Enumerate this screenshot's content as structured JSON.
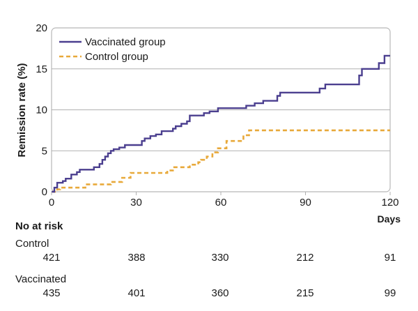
{
  "chart_data": {
    "type": "line",
    "step": true,
    "ylabel": "Remission rate (%)",
    "xlabel": "Days",
    "xlim": [
      0,
      120
    ],
    "ylim": [
      0,
      20
    ],
    "xticks": [
      0,
      30,
      60,
      90,
      120
    ],
    "yticks": [
      0,
      5,
      10,
      15,
      20
    ],
    "grid": "horizontal",
    "legend": "top-left",
    "series": [
      {
        "name": "Vaccinated group",
        "color": "#4b3f8f",
        "style": "solid",
        "points": [
          [
            0,
            0
          ],
          [
            1,
            0.5
          ],
          [
            2,
            1.1
          ],
          [
            4,
            1.3
          ],
          [
            5,
            1.6
          ],
          [
            7,
            2.1
          ],
          [
            9,
            2.4
          ],
          [
            10,
            2.7
          ],
          [
            15,
            3.0
          ],
          [
            17,
            3.4
          ],
          [
            18,
            3.9
          ],
          [
            19,
            4.3
          ],
          [
            20,
            4.7
          ],
          [
            21,
            5.0
          ],
          [
            22,
            5.2
          ],
          [
            24,
            5.4
          ],
          [
            26,
            5.7
          ],
          [
            32,
            6.2
          ],
          [
            33,
            6.5
          ],
          [
            35,
            6.8
          ],
          [
            37,
            7.0
          ],
          [
            39,
            7.4
          ],
          [
            43,
            7.7
          ],
          [
            44,
            8.0
          ],
          [
            46,
            8.3
          ],
          [
            48,
            8.6
          ],
          [
            49,
            9.3
          ],
          [
            54,
            9.6
          ],
          [
            56,
            9.8
          ],
          [
            59,
            10.2
          ],
          [
            69,
            10.5
          ],
          [
            72,
            10.8
          ],
          [
            75,
            11.1
          ],
          [
            80,
            11.7
          ],
          [
            81,
            12.1
          ],
          [
            95,
            12.6
          ],
          [
            97,
            13.1
          ],
          [
            109,
            14.2
          ],
          [
            110,
            15.0
          ],
          [
            116,
            15.7
          ],
          [
            118,
            16.6
          ],
          [
            120,
            16.6
          ]
        ]
      },
      {
        "name": "Control group",
        "color": "#e8a93a",
        "style": "dashed",
        "points": [
          [
            0,
            0
          ],
          [
            2,
            0.3
          ],
          [
            3,
            0.5
          ],
          [
            12,
            0.9
          ],
          [
            21,
            1.2
          ],
          [
            25,
            1.7
          ],
          [
            28,
            2.3
          ],
          [
            41,
            2.6
          ],
          [
            43,
            3.0
          ],
          [
            49,
            3.3
          ],
          [
            52,
            3.6
          ],
          [
            53,
            3.9
          ],
          [
            55,
            4.3
          ],
          [
            57,
            4.8
          ],
          [
            59,
            5.3
          ],
          [
            62,
            6.2
          ],
          [
            68,
            6.9
          ],
          [
            70,
            7.5
          ],
          [
            120,
            7.5
          ]
        ]
      }
    ],
    "number_at_risk": {
      "title": "No at risk",
      "groups": [
        {
          "label": "Control",
          "values": [
            "421",
            "388",
            "330",
            "212",
            "91"
          ]
        },
        {
          "label": "Vaccinated",
          "values": [
            "435",
            "401",
            "360",
            "215",
            "99"
          ]
        }
      ]
    }
  }
}
